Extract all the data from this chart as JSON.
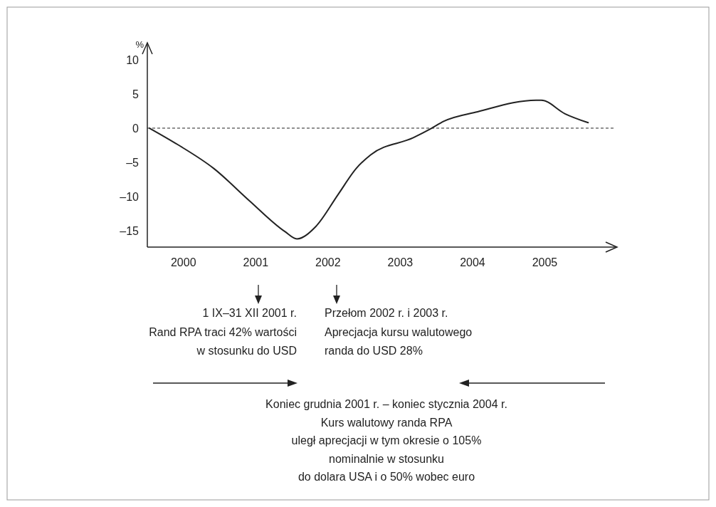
{
  "chart_data": {
    "type": "line",
    "ylabel": "%",
    "x": [
      2000.03,
      2000.42,
      2000.92,
      2001.41,
      2001.9,
      2002.07,
      2002.33,
      2002.64,
      2002.89,
      2003.09,
      2003.68,
      2003.92,
      2004.1,
      2004.57,
      2005.38,
      2005.45,
      2005.78,
      2006.1
    ],
    "series": [
      {
        "color": "#222222",
        "values": [
          0,
          -2.4,
          -5.9,
          -10.6,
          -15.1,
          -16.2,
          -14.4,
          -9.7,
          -5.9,
          -3.9,
          -1.4,
          -0.1,
          1.0,
          2.4,
          4.1,
          4.1,
          2.1,
          0.8
        ]
      }
    ],
    "xlim": [
      2000,
      2006.5
    ],
    "ylim": [
      -17.4,
      12.5
    ],
    "xticks": [
      {
        "value": 2000.5,
        "label": "2000"
      },
      {
        "value": 2001.5,
        "label": "2001"
      },
      {
        "value": 2002.5,
        "label": "2002"
      },
      {
        "value": 2003.5,
        "label": "2003"
      },
      {
        "value": 2004.5,
        "label": "2004"
      },
      {
        "value": 2005.5,
        "label": "2005"
      }
    ],
    "yticks": [
      {
        "value": -15,
        "label": "–15"
      },
      {
        "value": -10,
        "label": "–10"
      },
      {
        "value": -5,
        "label": "–5"
      },
      0,
      5,
      10
    ],
    "ref_lines": [
      {
        "axis": "y",
        "value": 0,
        "line_style": "dashed",
        "color": "#222222"
      }
    ],
    "grid": false,
    "marker": "none",
    "line_style": "solid",
    "annotations": [
      "1 IX–31 XII 2001 r.\nRand RPA traci 42% wartości\nw stosunku do USD",
      "Przełom 2002 r. i 2003 r.\nAprecjacja kursu walutowego\nranda do USD 28%",
      "Koniec grudnia 2001 r. – koniec stycznia 2004 r.\nKurs walutowy randa RPA\nuległ aprecjacji w tym okresie o 105%\nnominalnie w stosunku\ndo dolara USA i o 50% wobec euro"
    ]
  }
}
